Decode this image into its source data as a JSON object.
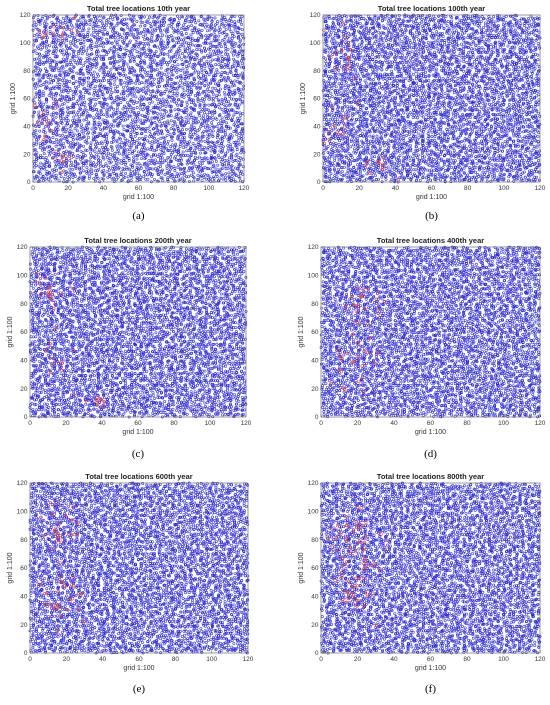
{
  "figure": {
    "panel_labels": [
      "(a)",
      "(b)",
      "(c)",
      "(d)",
      "(e)",
      "(f)"
    ]
  },
  "colors": {
    "tree_marker": "#2b2bd6",
    "highlight_marker": "#e0403a",
    "axes": "#555555"
  },
  "chart_data": [
    {
      "type": "scatter",
      "title": "Total tree locations 10th year",
      "xlabel": "grid 1:100",
      "ylabel": "grid 1:100",
      "xlim": [
        0,
        120
      ],
      "ylim": [
        0,
        120
      ],
      "xticks": [
        0,
        20,
        40,
        60,
        80,
        100,
        120
      ],
      "yticks": [
        0,
        20,
        40,
        60,
        80,
        100,
        120
      ],
      "marker": "open circle",
      "density": 9,
      "highlight_regions": [
        [
          8,
          42,
          5,
          9,
          6
        ],
        [
          14,
          18,
          5,
          5,
          4
        ],
        [
          6,
          105,
          4,
          5,
          3
        ],
        [
          20,
          110,
          5,
          4,
          3
        ]
      ]
    },
    {
      "type": "scatter",
      "title": "Total tree locations 100th year",
      "xlabel": "grid 1:100",
      "ylabel": "grid 1:100",
      "xlim": [
        0,
        120
      ],
      "ylim": [
        0,
        120
      ],
      "xticks": [
        0,
        20,
        40,
        60,
        80,
        100,
        120
      ],
      "yticks": [
        0,
        20,
        40,
        60,
        80,
        100,
        120
      ],
      "marker": "open circle",
      "density": 7.5,
      "highlight_regions": [
        [
          12,
          92,
          5,
          8,
          8
        ],
        [
          8,
          38,
          4,
          8,
          6
        ],
        [
          30,
          12,
          6,
          4,
          5
        ]
      ]
    },
    {
      "type": "scatter",
      "title": "Total tree locations 200th year",
      "xlabel": "grid 1:100",
      "ylabel": "grid 1:100",
      "xlim": [
        0,
        120
      ],
      "ylim": [
        0,
        120
      ],
      "xticks": [
        0,
        20,
        40,
        60,
        80,
        100,
        120
      ],
      "yticks": [
        0,
        20,
        40,
        60,
        80,
        100,
        120
      ],
      "marker": "open circle",
      "density": 7.5,
      "highlight_regions": [
        [
          10,
          88,
          6,
          6,
          8
        ],
        [
          14,
          45,
          5,
          8,
          5
        ],
        [
          36,
          12,
          5,
          4,
          5
        ]
      ]
    },
    {
      "type": "scatter",
      "title": "Total tree locations 400th year",
      "xlabel": "grid 1:100",
      "ylabel": "grid 1:100",
      "xlim": [
        0,
        120
      ],
      "ylim": [
        0,
        120
      ],
      "xticks": [
        0,
        20,
        40,
        60,
        80,
        100,
        120
      ],
      "yticks": [
        0,
        20,
        40,
        60,
        80,
        100,
        120
      ],
      "marker": "open circle",
      "density": 7.5,
      "highlight_regions": [
        [
          22,
          80,
          6,
          8,
          10
        ],
        [
          18,
          40,
          6,
          12,
          12
        ]
      ]
    },
    {
      "type": "scatter",
      "title": "Total tree locations 600th year",
      "xlabel": "grid 1:100",
      "ylabel": "grid 1:100",
      "xlim": [
        0,
        120
      ],
      "ylim": [
        0,
        120
      ],
      "xticks": [
        0,
        20,
        40,
        60,
        80,
        100,
        120
      ],
      "yticks": [
        0,
        20,
        40,
        60,
        80,
        100,
        120
      ],
      "marker": "open circle",
      "density": 7.5,
      "highlight_regions": [
        [
          16,
          85,
          6,
          10,
          12
        ],
        [
          18,
          38,
          7,
          10,
          14
        ]
      ]
    },
    {
      "type": "scatter",
      "title": "Total tree locations 800th year",
      "xlabel": "grid 1:100",
      "ylabel": "grid 1:100",
      "xlim": [
        0,
        120
      ],
      "ylim": [
        0,
        120
      ],
      "xticks": [
        0,
        20,
        40,
        60,
        80,
        100,
        120
      ],
      "yticks": [
        0,
        20,
        40,
        60,
        80,
        100,
        120
      ],
      "marker": "open circle",
      "density": 7.5,
      "highlight_regions": [
        [
          18,
          80,
          7,
          14,
          20
        ],
        [
          20,
          45,
          7,
          12,
          16
        ]
      ]
    }
  ]
}
